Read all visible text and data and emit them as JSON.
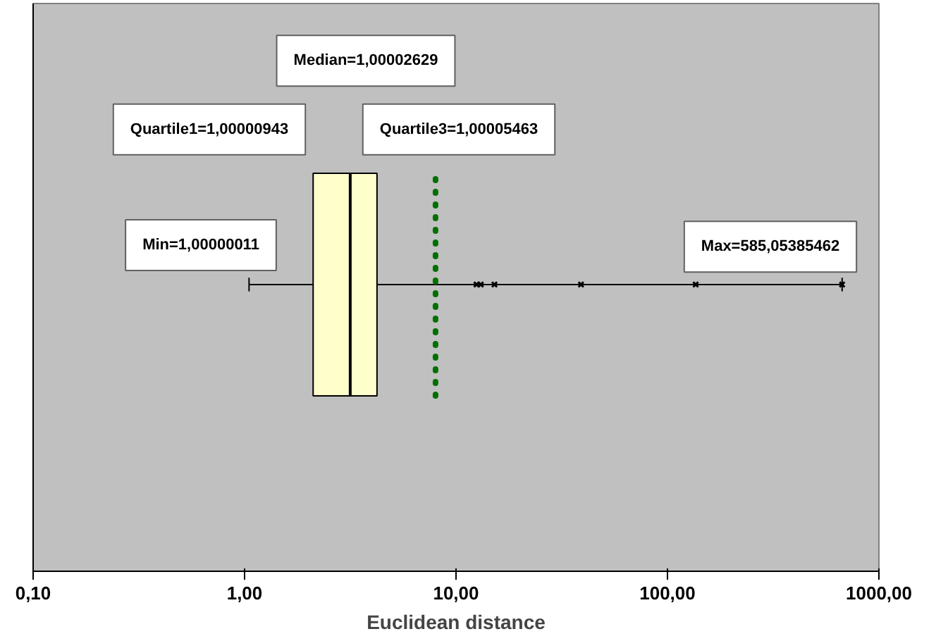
{
  "chart_data": {
    "type": "box",
    "xlabel": "Euclidean distance",
    "orientation": "horizontal",
    "categories": [
      null
    ],
    "boxes": [
      {
        "low": 1.05,
        "q1": 2.11,
        "median": 3.16,
        "q3": 4.23,
        "high": 670,
        "mean": 8.0,
        "outliers": [
          12.5,
          13.1,
          15.2,
          39,
          136,
          670
        ]
      }
    ],
    "color": "#ffffcc",
    "log": "x",
    "xlim": [
      0.1,
      1000
    ],
    "xticks": [
      {
        "value": 0.1,
        "label": "0,10"
      },
      {
        "value": 1,
        "label": "1,00"
      },
      {
        "value": 10,
        "label": "10,00"
      },
      {
        "value": 100,
        "label": "100,00"
      },
      {
        "value": 1000,
        "label": "1000,00"
      }
    ],
    "tick_labels": "x",
    "grid": false,
    "annotations": [
      "Median=1,00002629",
      "Quartile1=1,00000943",
      "Quartile3=1,00005463",
      "Min=1,00000011",
      "Max=585,05385462"
    ]
  }
}
